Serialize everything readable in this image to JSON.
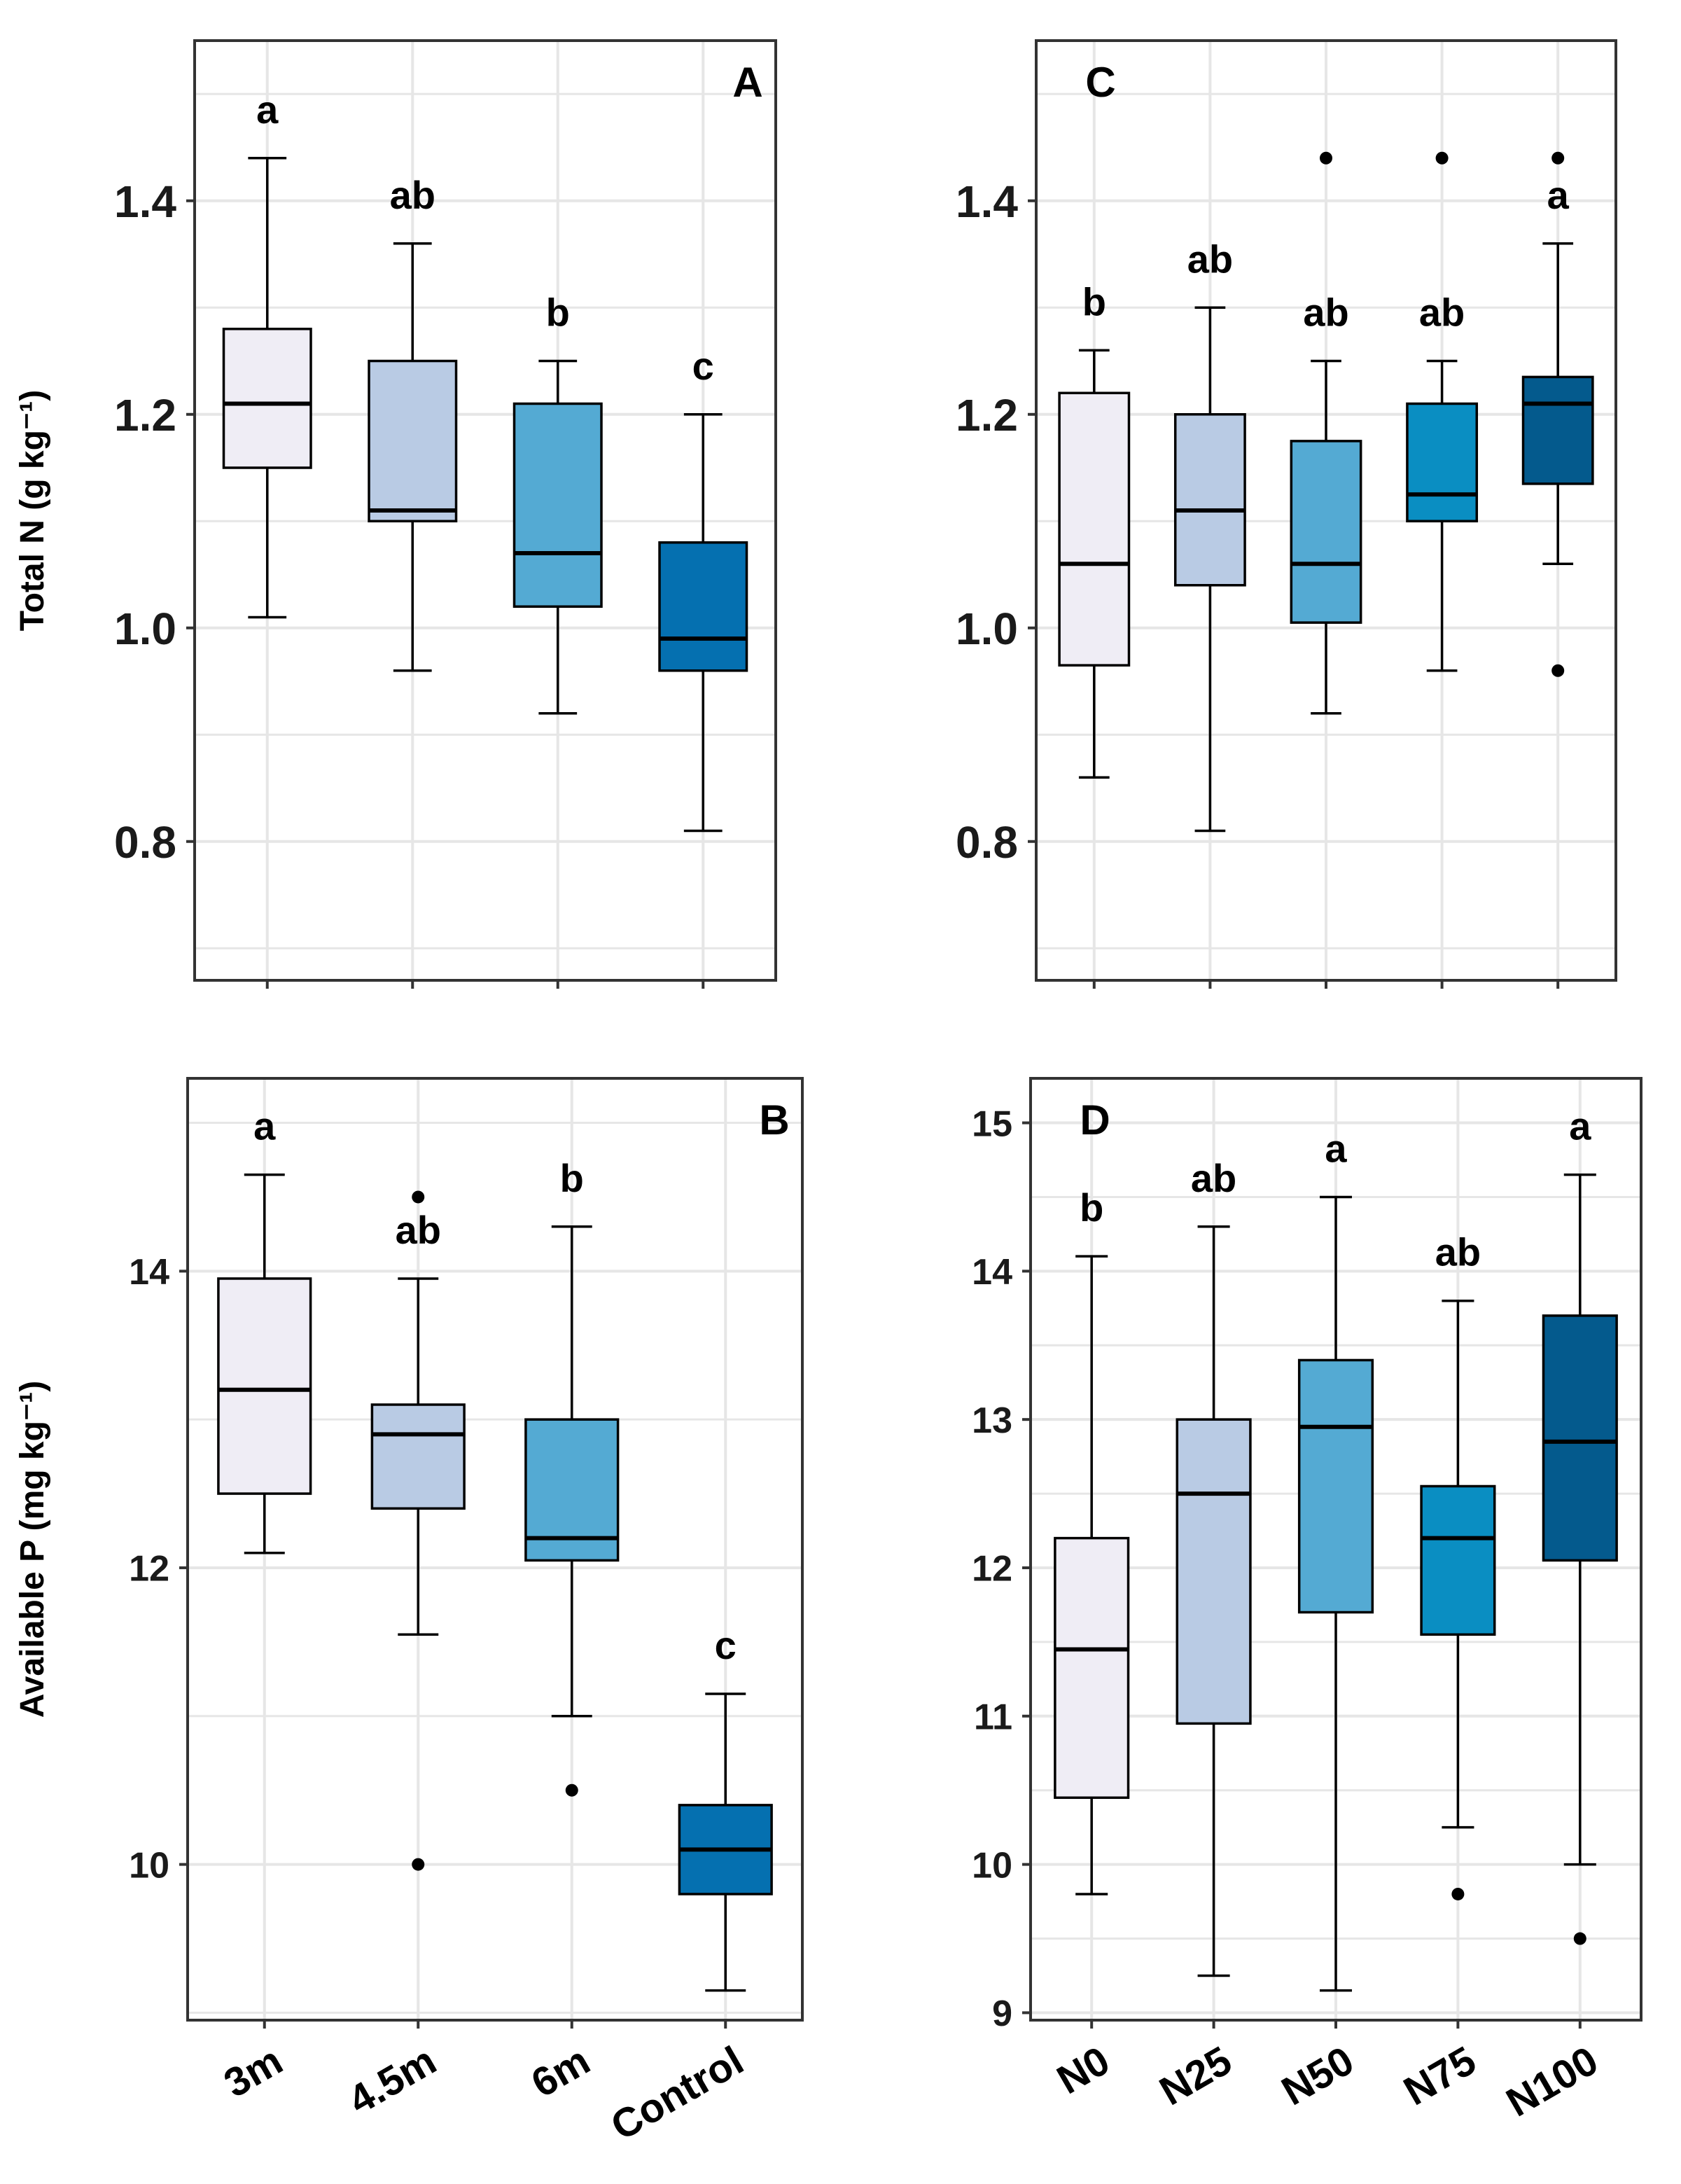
{
  "chart_data": [
    {
      "panel": "A",
      "type": "boxplot",
      "categories": [
        "3m",
        "4.5m",
        "6m",
        "Control"
      ],
      "ylabel": "Total N (g kg⁻¹)",
      "ylim": [
        0.67,
        1.55
      ],
      "yticks": [
        0.8,
        1.0,
        1.2,
        1.4
      ],
      "ytick_labels": [
        "0.8",
        "1.0",
        "1.2",
        "1.4"
      ],
      "grid": true,
      "boxes": [
        {
          "category": "3m",
          "whisker_low": 1.01,
          "q1": 1.15,
          "median": 1.21,
          "q3": 1.28,
          "whisker_high": 1.44,
          "outliers": [],
          "letter": "a",
          "fill": "#efedf5"
        },
        {
          "category": "4.5m",
          "whisker_low": 0.96,
          "q1": 1.1,
          "median": 1.11,
          "q3": 1.25,
          "whisker_high": 1.36,
          "outliers": [],
          "letter": "ab",
          "fill": "#b9cbe4"
        },
        {
          "category": "6m",
          "whisker_low": 0.92,
          "q1": 1.02,
          "median": 1.07,
          "q3": 1.21,
          "whisker_high": 1.25,
          "outliers": [],
          "letter": "b",
          "fill": "#54aad3"
        },
        {
          "category": "Control",
          "whisker_low": 0.81,
          "q1": 0.96,
          "median": 0.99,
          "q3": 1.08,
          "whisker_high": 1.2,
          "outliers": [],
          "letter": "c",
          "fill": "#0570b0"
        }
      ]
    },
    {
      "panel": "C",
      "type": "boxplot",
      "categories": [
        "N0",
        "N25",
        "N50",
        "N75",
        "N100"
      ],
      "ylabel": "",
      "ylim": [
        0.67,
        1.55
      ],
      "yticks": [
        0.8,
        1.0,
        1.2,
        1.4
      ],
      "ytick_labels": [
        "0.8",
        "1.0",
        "1.2",
        "1.4"
      ],
      "grid": true,
      "boxes": [
        {
          "category": "N0",
          "whisker_low": 0.86,
          "q1": 0.965,
          "median": 1.06,
          "q3": 1.22,
          "whisker_high": 1.26,
          "outliers": [],
          "letter": "b",
          "fill": "#efedf5"
        },
        {
          "category": "N25",
          "whisker_low": 0.81,
          "q1": 1.04,
          "median": 1.11,
          "q3": 1.2,
          "whisker_high": 1.3,
          "outliers": [],
          "letter": "ab",
          "fill": "#b9cbe4"
        },
        {
          "category": "N50",
          "whisker_low": 0.92,
          "q1": 1.005,
          "median": 1.06,
          "q3": 1.175,
          "whisker_high": 1.25,
          "outliers": [
            1.44
          ],
          "letter": "ab",
          "fill": "#54aad3"
        },
        {
          "category": "N75",
          "whisker_low": 0.96,
          "q1": 1.1,
          "median": 1.125,
          "q3": 1.21,
          "whisker_high": 1.25,
          "outliers": [
            1.44
          ],
          "letter": "ab",
          "fill": "#0a8ec2"
        },
        {
          "category": "N100",
          "whisker_low": 1.06,
          "q1": 1.135,
          "median": 1.21,
          "q3": 1.235,
          "whisker_high": 1.36,
          "outliers": [
            0.96,
            1.44
          ],
          "letter": "a",
          "fill": "#045a8d"
        }
      ]
    },
    {
      "panel": "B",
      "type": "boxplot",
      "categories": [
        "3m",
        "4.5m",
        "6m",
        "Control"
      ],
      "ylabel": "Available P (mg kg⁻¹)",
      "ylim": [
        8.95,
        15.3
      ],
      "yticks": [
        10,
        12,
        14
      ],
      "ytick_labels": [
        "10",
        "12",
        "14"
      ],
      "grid": true,
      "boxes": [
        {
          "category": "3m",
          "whisker_low": 12.1,
          "q1": 12.5,
          "median": 13.2,
          "q3": 13.95,
          "whisker_high": 14.65,
          "outliers": [],
          "letter": "a",
          "fill": "#efedf5"
        },
        {
          "category": "4.5m",
          "whisker_low": 11.55,
          "q1": 12.4,
          "median": 12.9,
          "q3": 13.1,
          "whisker_high": 13.95,
          "outliers": [
            10.0,
            14.5
          ],
          "letter": "ab",
          "fill": "#b9cbe4"
        },
        {
          "category": "6m",
          "whisker_low": 11.0,
          "q1": 12.05,
          "median": 12.2,
          "q3": 13.0,
          "whisker_high": 14.3,
          "outliers": [
            10.5
          ],
          "letter": "b",
          "fill": "#54aad3"
        },
        {
          "category": "Control",
          "whisker_low": 9.15,
          "q1": 9.8,
          "median": 10.1,
          "q3": 10.4,
          "whisker_high": 11.15,
          "outliers": [],
          "letter": "c",
          "fill": "#0570b0"
        }
      ]
    },
    {
      "panel": "D",
      "type": "boxplot",
      "categories": [
        "N0",
        "N25",
        "N50",
        "N75",
        "N100"
      ],
      "ylabel": "",
      "ylim": [
        8.95,
        15.3
      ],
      "yticks": [
        9,
        10,
        11,
        12,
        13,
        14,
        15
      ],
      "ytick_labels": [
        "9",
        "10",
        "11",
        "12",
        "13",
        "14",
        "15"
      ],
      "grid": true,
      "boxes": [
        {
          "category": "N0",
          "whisker_low": 9.8,
          "q1": 10.45,
          "median": 11.45,
          "q3": 12.2,
          "whisker_high": 14.1,
          "outliers": [],
          "letter": "b",
          "fill": "#efedf5"
        },
        {
          "category": "N25",
          "whisker_low": 9.25,
          "q1": 10.95,
          "median": 12.5,
          "q3": 13.0,
          "whisker_high": 14.3,
          "outliers": [],
          "letter": "ab",
          "fill": "#b9cbe4"
        },
        {
          "category": "N50",
          "whisker_low": 9.15,
          "q1": 11.7,
          "median": 12.95,
          "q3": 13.4,
          "whisker_high": 14.5,
          "outliers": [],
          "letter": "a",
          "fill": "#54aad3"
        },
        {
          "category": "N75",
          "whisker_low": 10.25,
          "q1": 11.55,
          "median": 12.2,
          "q3": 12.55,
          "whisker_high": 13.8,
          "outliers": [
            9.8
          ],
          "letter": "ab",
          "fill": "#0a8ec2"
        },
        {
          "category": "N100",
          "whisker_low": 10.0,
          "q1": 12.05,
          "median": 12.85,
          "q3": 13.7,
          "whisker_high": 14.65,
          "outliers": [
            9.5
          ],
          "letter": "a",
          "fill": "#045a8d"
        }
      ]
    }
  ],
  "colors": {
    "tick_label_top": "#1a1a1a",
    "tick_label_bottom": "#1a1a1a",
    "frame": "#333333",
    "grid": "#e6e6e6",
    "line": "#000000"
  }
}
